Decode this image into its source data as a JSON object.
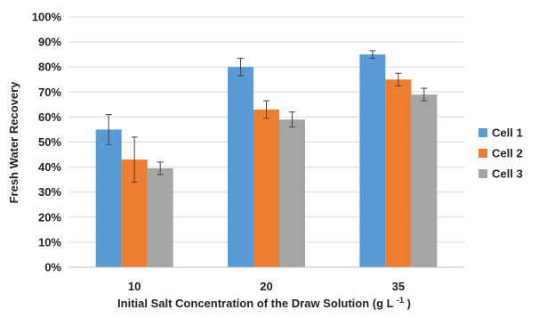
{
  "chart_data": {
    "type": "bar",
    "title": "",
    "xlabel": "Initial Salt Concentration of the Draw Solution (g L",
    "xlabel_superscript": "-1",
    "xlabel_suffix": ")",
    "ylabel": "Fresh Water Recovery",
    "ylim": [
      0,
      100
    ],
    "y_ticks": [
      "0%",
      "10%",
      "20%",
      "30%",
      "40%",
      "50%",
      "60%",
      "70%",
      "80%",
      "90%",
      "100%"
    ],
    "y_tick_values": [
      0,
      10,
      20,
      30,
      40,
      50,
      60,
      70,
      80,
      90,
      100
    ],
    "categories": [
      "10",
      "20",
      "35"
    ],
    "grid": true,
    "legend_position": "right",
    "series": [
      {
        "name": "Cell 1",
        "color": "#5B9BD5",
        "values": [
          55,
          80,
          85
        ],
        "error": [
          6,
          3.5,
          1.5
        ]
      },
      {
        "name": "Cell 2",
        "color": "#ED7D31",
        "values": [
          43,
          63,
          75
        ],
        "error": [
          9,
          3.5,
          2.5
        ]
      },
      {
        "name": "Cell 3",
        "color": "#A5A5A5",
        "values": [
          39.5,
          59,
          69
        ],
        "error": [
          2.5,
          3,
          2.5
        ]
      }
    ]
  }
}
